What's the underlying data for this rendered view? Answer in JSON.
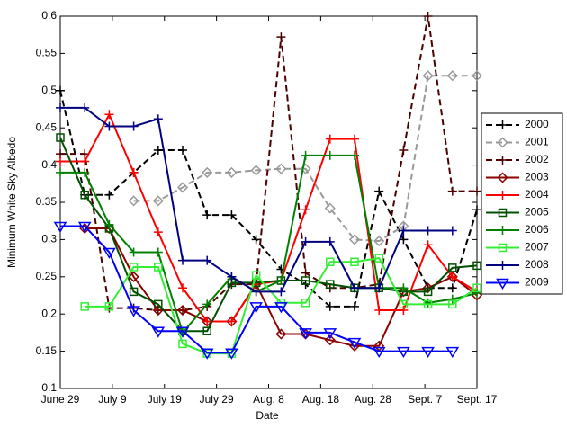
{
  "chart_data": {
    "type": "line",
    "x_label": "Date",
    "y_label": "Minimum White Sky Albedo",
    "x": [
      180,
      184.7,
      189.4,
      194.1,
      198.8,
      203.5,
      208.2,
      212.9,
      217.6,
      222.4,
      227.1,
      231.8,
      236.5,
      241.2,
      245.9,
      250.6,
      255.3,
      260
    ],
    "xlim": [
      180,
      260
    ],
    "xticks": [
      {
        "value": 180,
        "label": "June 29"
      },
      {
        "value": 190,
        "label": "July 9"
      },
      {
        "value": 200,
        "label": "July 19"
      },
      {
        "value": 210,
        "label": "July 29"
      },
      {
        "value": 220,
        "label": "Aug. 8"
      },
      {
        "value": 230,
        "label": "Aug. 18"
      },
      {
        "value": 240,
        "label": "Aug. 28"
      },
      {
        "value": 250,
        "label": "Sept. 7"
      },
      {
        "value": 260,
        "label": "Sept. 17"
      }
    ],
    "ylim": [
      0.1,
      0.6
    ],
    "yticks": [
      0.1,
      0.15,
      0.2,
      0.25,
      0.3,
      0.35,
      0.4,
      0.45,
      0.5,
      0.55,
      0.6
    ],
    "legend": "outside-right",
    "series": [
      {
        "name": "2000",
        "color": "#000000",
        "dash": true,
        "marker": "plus",
        "values": [
          0.5,
          0.36,
          0.36,
          0.39,
          0.42,
          0.42,
          0.333,
          0.333,
          0.3,
          0.26,
          0.24,
          0.21,
          0.21,
          0.365,
          0.3,
          0.235,
          0.235,
          0.34
        ]
      },
      {
        "name": "2001",
        "color": "#999999",
        "dash": true,
        "marker": "diamond",
        "values": [
          null,
          null,
          null,
          0.352,
          0.352,
          0.37,
          0.39,
          0.39,
          0.393,
          0.395,
          0.395,
          0.342,
          0.3,
          0.298,
          0.318,
          0.52,
          0.52,
          0.52
        ]
      },
      {
        "name": "2002",
        "color": "#4d0000",
        "dash": true,
        "marker": "plus",
        "values": [
          0.415,
          0.415,
          0.208,
          0.208,
          0.205,
          0.205,
          0.21,
          0.24,
          0.24,
          0.572,
          0.255,
          0.235,
          0.235,
          0.24,
          0.42,
          0.6,
          0.365,
          0.365
        ]
      },
      {
        "name": "2003",
        "color": "#8b0000",
        "dash": false,
        "marker": "diamond",
        "values": [
          null,
          0.315,
          0.315,
          0.25,
          0.205,
          0.205,
          0.19,
          0.19,
          0.24,
          0.173,
          0.173,
          0.165,
          0.157,
          0.157,
          0.23,
          0.235,
          0.25,
          0.225
        ]
      },
      {
        "name": "2004",
        "color": "#ff0000",
        "dash": false,
        "marker": "plus",
        "values": [
          0.405,
          0.405,
          0.468,
          0.39,
          0.31,
          0.235,
          0.19,
          0.19,
          0.24,
          0.245,
          0.34,
          0.435,
          0.435,
          0.205,
          0.205,
          0.293,
          0.25,
          0.23
        ]
      },
      {
        "name": "2005",
        "color": "#005000",
        "dash": false,
        "marker": "square",
        "values": [
          0.437,
          0.36,
          0.315,
          0.23,
          0.213,
          0.177,
          0.177,
          0.242,
          0.242,
          0.245,
          0.245,
          0.24,
          0.235,
          0.235,
          0.23,
          0.23,
          0.262,
          0.265
        ]
      },
      {
        "name": "2006",
        "color": "#008000",
        "dash": false,
        "marker": "plus",
        "values": [
          0.39,
          0.39,
          0.32,
          0.283,
          0.283,
          0.175,
          0.213,
          0.25,
          0.23,
          0.245,
          0.413,
          0.413,
          0.413,
          0.235,
          0.235,
          0.215,
          0.22,
          0.228
        ]
      },
      {
        "name": "2007",
        "color": "#33ee33",
        "dash": false,
        "marker": "square",
        "values": [
          null,
          0.21,
          0.21,
          0.263,
          0.263,
          0.16,
          0.147,
          0.147,
          0.252,
          0.215,
          0.215,
          0.27,
          0.27,
          0.275,
          0.213,
          0.213,
          0.213,
          0.235
        ]
      },
      {
        "name": "2008",
        "color": "#000080",
        "dash": false,
        "marker": "plus",
        "values": [
          0.477,
          0.477,
          0.452,
          0.452,
          0.462,
          0.272,
          0.272,
          0.25,
          0.23,
          0.23,
          0.297,
          0.297,
          0.235,
          0.235,
          0.312,
          0.312,
          0.312,
          null
        ]
      },
      {
        "name": "2009",
        "color": "#0000ff",
        "dash": false,
        "marker": "triangle-down",
        "values": [
          0.318,
          0.318,
          0.283,
          0.205,
          0.177,
          0.177,
          0.148,
          0.148,
          0.21,
          0.21,
          0.175,
          0.175,
          0.162,
          0.15,
          0.15,
          0.15,
          0.15,
          null
        ]
      }
    ]
  }
}
